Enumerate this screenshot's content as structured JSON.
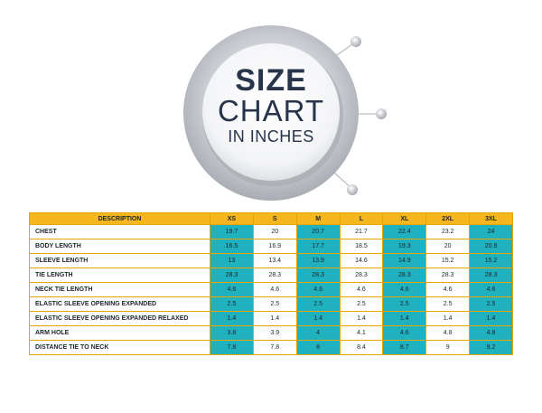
{
  "emblem": {
    "line1": "SIZE",
    "line2": "CHART",
    "line3": "IN INCHES"
  },
  "table": {
    "headers": [
      "DESCRIPTION",
      "XS",
      "S",
      "M",
      "L",
      "XL",
      "2XL",
      "3XL"
    ],
    "highlight_columns": [
      1,
      3,
      5,
      7
    ],
    "rows": [
      {
        "label": "CHEST",
        "values": [
          "19.7",
          "20",
          "20.7",
          "21.7",
          "22.4",
          "23.2",
          "24"
        ]
      },
      {
        "label": "BODY LENGTH",
        "values": [
          "16.5",
          "16.9",
          "17.7",
          "18.5",
          "19.3",
          "20",
          "20.9"
        ]
      },
      {
        "label": "SLEEVE LENGTH",
        "values": [
          "13",
          "13.4",
          "13.9",
          "14.6",
          "14.9",
          "15.2",
          "15.2"
        ]
      },
      {
        "label": "TIE LENGTH",
        "values": [
          "28.3",
          "28.3",
          "28.3",
          "28.3",
          "28.3",
          "28.3",
          "28.3"
        ]
      },
      {
        "label": "NECK TIE LENGTH",
        "values": [
          "4.6",
          "4.6",
          "4.6",
          "4.6",
          "4.6",
          "4.6",
          "4.6"
        ]
      },
      {
        "label": "ELASTIC SLEEVE OPENING EXPANDED",
        "values": [
          "2.5",
          "2.5",
          "2.5",
          "2.5",
          "2.5",
          "2.5",
          "2.5"
        ]
      },
      {
        "label": "ELASTIC SLEEVE OPENING EXPANDED RELAXED",
        "values": [
          "1.4",
          "1.4",
          "1.4",
          "1.4",
          "1.4",
          "1.4",
          "1.4"
        ]
      },
      {
        "label": "ARM HOLE",
        "values": [
          "3.8",
          "3.9",
          "4",
          "4.1",
          "4.6",
          "4.8",
          "4.8"
        ]
      },
      {
        "label": "DISTANCE TIE TO NECK",
        "values": [
          "7.8",
          "7.8",
          "8",
          "8.4",
          "8.7",
          "9",
          "9.2"
        ]
      }
    ]
  },
  "colors": {
    "header": "#f6b61d",
    "highlight": "#1fb1bd",
    "text": "#27344a"
  }
}
